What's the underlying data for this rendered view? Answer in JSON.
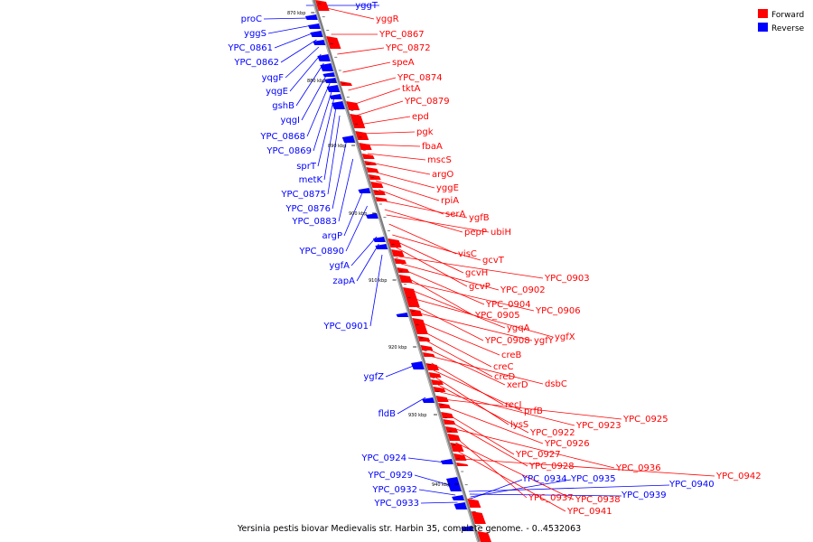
{
  "caption": "Yersinia pestis biovar Medievalis str. Harbin 35, complete genome. - 0..4532063",
  "legend": [
    {
      "label": "Forward",
      "color": "#ff0000"
    },
    {
      "label": "Reverse",
      "color": "#0000ff"
    }
  ],
  "colors": {
    "forward": "#ff0000",
    "reverse": "#0000ff",
    "axis": "#808080"
  },
  "ticks": [
    "870 kbp",
    "880 kbp",
    "890 kbp",
    "900 kbp",
    "910 kbp",
    "920 kbp",
    "930 kbp",
    "940 kbp"
  ],
  "reverse_genes": [
    "yggT",
    "proC",
    "yggS",
    "YPC_0861",
    "YPC_0862",
    "yqgF",
    "yqgE",
    "gshB",
    "yqgI",
    "YPC_0868",
    "YPC_0869",
    "sprT",
    "metK",
    "YPC_0875",
    "YPC_0876",
    "YPC_0883",
    "argP",
    "YPC_0890",
    "ygfA",
    "zapA",
    "YPC_0901",
    "ygfZ",
    "fldB",
    "YPC_0924",
    "YPC_0929",
    "YPC_0932",
    "YPC_0933",
    "YPC_0934",
    "YPC_0935",
    "YPC_0939",
    "YPC_0940"
  ],
  "forward_genes": [
    "yggR",
    "YPC_0867",
    "YPC_0872",
    "speA",
    "YPC_0874",
    "tktA",
    "YPC_0879",
    "epd",
    "pgk",
    "fbaA",
    "mscS",
    "argO",
    "yggE",
    "rpiA",
    "serA",
    "ygfB",
    "pepP",
    "ubiH",
    "visC",
    "gcvT",
    "gcvH",
    "gcvP",
    "YPC_0903",
    "YPC_0902",
    "YPC_0904",
    "YPC_0905",
    "YPC_0906",
    "ygqA",
    "ygfX",
    "YPC_0908",
    "ygfY",
    "creB",
    "creC",
    "creD",
    "xerD",
    "dsbC",
    "recJ",
    "prfB",
    "lysS",
    "YPC_0922",
    "YPC_0923",
    "YPC_0925",
    "YPC_0926",
    "YPC_0927",
    "YPC_0928",
    "YPC_0936",
    "YPC_0937",
    "YPC_0938",
    "YPC_0941",
    "YPC_0942"
  ]
}
